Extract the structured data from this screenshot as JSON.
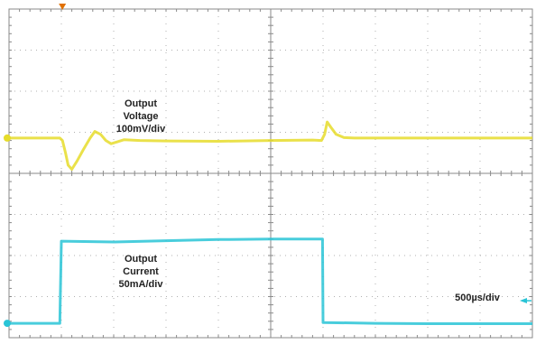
{
  "chart_data": {
    "type": "line",
    "title": "",
    "grid": true,
    "x_units": "divisions",
    "xlim": [
      0,
      10
    ],
    "ylim": [
      -4,
      4
    ],
    "timebase": "500µs/div",
    "series": [
      {
        "name": "",
        "color": "#e6dc2a",
        "scale": "100mV/div",
        "points": [
          [
            0.0,
            0.86
          ],
          [
            0.97,
            0.86
          ],
          [
            1.02,
            0.8
          ],
          [
            1.08,
            0.5
          ],
          [
            1.13,
            0.2
          ],
          [
            1.2,
            0.1
          ],
          [
            1.3,
            0.3
          ],
          [
            1.42,
            0.58
          ],
          [
            1.55,
            0.86
          ],
          [
            1.64,
            1.02
          ],
          [
            1.75,
            0.95
          ],
          [
            1.85,
            0.8
          ],
          [
            1.95,
            0.72
          ],
          [
            2.05,
            0.76
          ],
          [
            2.2,
            0.82
          ],
          [
            2.5,
            0.8
          ],
          [
            3.0,
            0.79
          ],
          [
            4.0,
            0.78
          ],
          [
            5.0,
            0.8
          ],
          [
            5.8,
            0.81
          ],
          [
            5.97,
            0.8
          ],
          [
            6.03,
            0.95
          ],
          [
            6.08,
            1.25
          ],
          [
            6.15,
            1.12
          ],
          [
            6.25,
            0.95
          ],
          [
            6.4,
            0.87
          ],
          [
            6.6,
            0.86
          ],
          [
            7.5,
            0.86
          ],
          [
            10.0,
            0.86
          ]
        ]
      },
      {
        "name": "",
        "color": "#29c4d6",
        "scale": "50mA/div",
        "points": [
          [
            0.0,
            -3.65
          ],
          [
            0.97,
            -3.65
          ],
          [
            1.0,
            -1.65
          ],
          [
            2.0,
            -1.67
          ],
          [
            3.0,
            -1.64
          ],
          [
            4.0,
            -1.61
          ],
          [
            5.0,
            -1.6
          ],
          [
            5.99,
            -1.6
          ],
          [
            6.0,
            -3.63
          ],
          [
            7.0,
            -3.65
          ],
          [
            8.0,
            -3.66
          ],
          [
            10.0,
            -3.66
          ]
        ]
      }
    ]
  },
  "labels": {
    "voltage": [
      "Output",
      "Voltage",
      "100mV/div"
    ],
    "current": [
      "Output",
      "Current",
      "50mA/div"
    ],
    "timebase": "500µs/div"
  },
  "colors": {
    "grid": "#8a8a8a",
    "grid_dots": "#b0b0b0",
    "trigger_marker": "#e07000",
    "current_marker": "#29c4d6"
  }
}
